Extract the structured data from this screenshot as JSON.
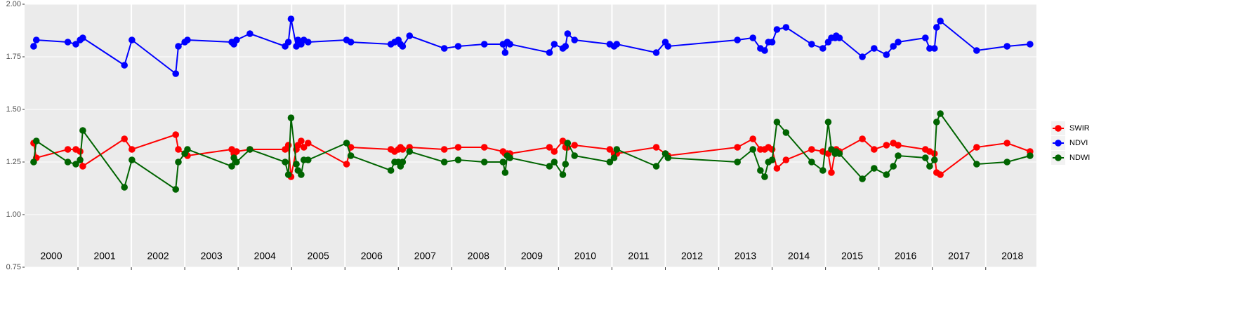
{
  "chart_data": {
    "type": "line",
    "x": [
      2000.17,
      2000.22,
      2000.81,
      2000.96,
      2001.04,
      2001.09,
      2001.87,
      2002.01,
      2002.83,
      2002.88,
      2003.0,
      2003.05,
      2003.88,
      2003.92,
      2003.97,
      2004.22,
      2004.88,
      2004.94,
      2004.99,
      2005.09,
      2005.12,
      2005.18,
      2005.23,
      2005.31,
      2006.03,
      2006.11,
      2006.86,
      2006.93,
      2007.0,
      2007.04,
      2007.08,
      2007.21,
      2007.86,
      2008.12,
      2008.61,
      2008.96,
      2009.0,
      2009.04,
      2009.09,
      2009.83,
      2009.92,
      2010.08,
      2010.13,
      2010.17,
      2010.3,
      2010.96,
      2011.04,
      2011.09,
      2011.83,
      2012.0,
      2012.05,
      2013.35,
      2013.64,
      2013.78,
      2013.86,
      2013.93,
      2014.0,
      2014.09,
      2014.26,
      2014.74,
      2014.95,
      2015.05,
      2015.11,
      2015.18,
      2015.2,
      2015.26,
      2015.69,
      2015.91,
      2016.14,
      2016.27,
      2016.36,
      2016.87,
      2016.95,
      2017.04,
      2017.08,
      2017.15,
      2017.83,
      2018.4,
      2018.83
    ],
    "series": [
      {
        "name": "SWIR",
        "color": "#ff0000",
        "values": [
          1.34,
          1.27,
          1.31,
          1.31,
          1.3,
          1.23,
          1.36,
          1.31,
          1.38,
          1.31,
          1.29,
          1.28,
          1.31,
          1.29,
          1.3,
          1.31,
          1.31,
          1.33,
          1.18,
          1.31,
          1.33,
          1.35,
          1.32,
          1.34,
          1.24,
          1.32,
          1.31,
          1.3,
          1.31,
          1.32,
          1.31,
          1.32,
          1.31,
          1.32,
          1.32,
          1.3,
          1.29,
          1.29,
          1.29,
          1.32,
          1.3,
          1.35,
          1.32,
          1.32,
          1.33,
          1.31,
          1.29,
          1.29,
          1.32,
          1.29,
          1.28,
          1.32,
          1.36,
          1.31,
          1.31,
          1.32,
          1.31,
          1.22,
          1.26,
          1.31,
          1.3,
          1.29,
          1.2,
          1.3,
          1.31,
          1.3,
          1.36,
          1.31,
          1.33,
          1.34,
          1.33,
          1.31,
          1.3,
          1.29,
          1.2,
          1.19,
          1.32,
          1.34,
          1.3
        ]
      },
      {
        "name": "NDVI",
        "color": "#0000ff",
        "values": [
          1.8,
          1.83,
          1.82,
          1.81,
          1.83,
          1.84,
          1.71,
          1.83,
          1.67,
          1.8,
          1.82,
          1.83,
          1.82,
          1.81,
          1.83,
          1.86,
          1.8,
          1.82,
          1.93,
          1.8,
          1.83,
          1.81,
          1.83,
          1.82,
          1.83,
          1.82,
          1.81,
          1.82,
          1.83,
          1.81,
          1.8,
          1.85,
          1.79,
          1.8,
          1.81,
          1.81,
          1.77,
          1.82,
          1.81,
          1.77,
          1.81,
          1.79,
          1.8,
          1.86,
          1.83,
          1.81,
          1.8,
          1.81,
          1.77,
          1.82,
          1.8,
          1.83,
          1.84,
          1.79,
          1.78,
          1.82,
          1.82,
          1.88,
          1.89,
          1.81,
          1.79,
          1.82,
          1.84,
          1.84,
          1.85,
          1.84,
          1.75,
          1.79,
          1.76,
          1.8,
          1.82,
          1.84,
          1.79,
          1.79,
          1.89,
          1.92,
          1.78,
          1.8,
          1.81
        ]
      },
      {
        "name": "NDWI",
        "color": "#006400",
        "values": [
          1.25,
          1.35,
          1.25,
          1.24,
          1.26,
          1.4,
          1.13,
          1.26,
          1.12,
          1.25,
          1.29,
          1.31,
          1.23,
          1.27,
          1.25,
          1.31,
          1.25,
          1.19,
          1.46,
          1.24,
          1.21,
          1.19,
          1.26,
          1.26,
          1.34,
          1.28,
          1.21,
          1.25,
          1.25,
          1.23,
          1.25,
          1.3,
          1.25,
          1.26,
          1.25,
          1.25,
          1.2,
          1.28,
          1.27,
          1.23,
          1.25,
          1.19,
          1.24,
          1.34,
          1.28,
          1.25,
          1.27,
          1.31,
          1.23,
          1.29,
          1.27,
          1.25,
          1.31,
          1.21,
          1.18,
          1.25,
          1.26,
          1.44,
          1.39,
          1.25,
          1.21,
          1.44,
          1.31,
          1.29,
          1.3,
          1.29,
          1.17,
          1.22,
          1.19,
          1.23,
          1.28,
          1.27,
          1.23,
          1.26,
          1.44,
          1.48,
          1.24,
          1.25,
          1.28
        ]
      }
    ],
    "xlim": [
      2000,
      2018.95
    ],
    "xticks": [
      {
        "value": 2000.5,
        "label": "2000"
      },
      {
        "value": 2001.5,
        "label": "2001"
      },
      {
        "value": 2002.5,
        "label": "2002"
      },
      {
        "value": 2003.5,
        "label": "2003"
      },
      {
        "value": 2004.5,
        "label": "2004"
      },
      {
        "value": 2005.5,
        "label": "2005"
      },
      {
        "value": 2006.5,
        "label": "2006"
      },
      {
        "value": 2007.5,
        "label": "2007"
      },
      {
        "value": 2008.5,
        "label": "2008"
      },
      {
        "value": 2009.5,
        "label": "2009"
      },
      {
        "value": 2010.5,
        "label": "2010"
      },
      {
        "value": 2011.5,
        "label": "2011"
      },
      {
        "value": 2012.5,
        "label": "2012"
      },
      {
        "value": 2013.5,
        "label": "2013"
      },
      {
        "value": 2014.5,
        "label": "2014"
      },
      {
        "value": 2015.5,
        "label": "2015"
      },
      {
        "value": 2016.5,
        "label": "2016"
      },
      {
        "value": 2017.5,
        "label": "2017"
      },
      {
        "value": 2018.5,
        "label": "2018"
      }
    ],
    "xgrid": [
      2001,
      2002,
      2003,
      2004,
      2005,
      2006,
      2007,
      2008,
      2009,
      2010,
      2011,
      2012,
      2013,
      2014,
      2015,
      2016,
      2017,
      2018
    ],
    "ylim": [
      0.75,
      2
    ],
    "yticks": [
      0.75,
      {
        "value": 1,
        "label": "1.00"
      },
      1.25,
      {
        "value": 1.5,
        "label": "1.50"
      },
      1.75,
      {
        "value": 2,
        "label": "2.00"
      }
    ],
    "grid": true,
    "legend": "right"
  }
}
